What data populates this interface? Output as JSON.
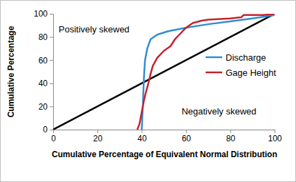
{
  "chart_data": {
    "type": "line",
    "xlabel": "Cumulative Percentage of Equivalent Normal Distribution",
    "ylabel": "Cumulative Percentage",
    "annotations": [
      "Positively skewed",
      "Negatively skewed"
    ],
    "xlim": [
      0,
      100
    ],
    "xticks": [
      0,
      20,
      40,
      60,
      80,
      100
    ],
    "ylim": [
      0,
      100
    ],
    "yticks": [
      0,
      20,
      40,
      60,
      80,
      100
    ],
    "grid": false,
    "legend": "right",
    "series": [
      {
        "color": "#000000",
        "x": [
          0,
          100
        ],
        "values": [
          0,
          100
        ]
      },
      {
        "name": "Discharge",
        "color": "#2f8bd2",
        "x": [
          40,
          40.5,
          41,
          41.5,
          42.5,
          44,
          47,
          52,
          60,
          70,
          80,
          90,
          100
        ],
        "values": [
          0,
          20,
          45,
          60,
          70,
          78,
          82,
          85,
          88,
          91,
          93.5,
          96,
          99
        ]
      },
      {
        "name": "Gage Height",
        "color": "#c4202b",
        "x": [
          38,
          39,
          40,
          41,
          42,
          43,
          44,
          45,
          47,
          50,
          53,
          55,
          57,
          60,
          63,
          67,
          70,
          80,
          85,
          86,
          90,
          95,
          100
        ],
        "values": [
          0,
          5,
          15,
          25,
          33,
          40,
          48,
          55,
          62,
          68,
          72,
          78,
          82,
          88,
          92,
          94,
          95,
          96,
          97,
          99,
          99,
          99,
          100
        ]
      }
    ]
  }
}
